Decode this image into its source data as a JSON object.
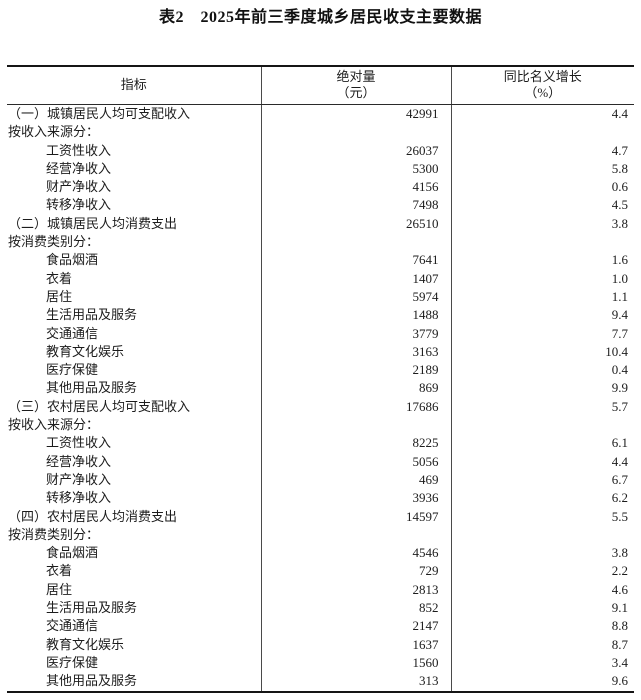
{
  "title": "表2　2025年前三季度城乡居民收支主要数据",
  "table": {
    "columns": [
      {
        "label": "指标",
        "unit": ""
      },
      {
        "label": "绝对量",
        "unit": "（元）"
      },
      {
        "label": "同比名义增长",
        "unit": "（%）"
      }
    ],
    "rows": [
      {
        "type": "section",
        "label": "（一）城镇居民人均可支配收入",
        "abs": "42991",
        "growth": "4.4"
      },
      {
        "type": "group",
        "label": "按收入来源分：",
        "abs": "",
        "growth": ""
      },
      {
        "type": "item",
        "label": "工资性收入",
        "abs": "26037",
        "growth": "4.7"
      },
      {
        "type": "item",
        "label": "经营净收入",
        "abs": "5300",
        "growth": "5.8"
      },
      {
        "type": "item",
        "label": "财产净收入",
        "abs": "4156",
        "growth": "0.6"
      },
      {
        "type": "item",
        "label": "转移净收入",
        "abs": "7498",
        "growth": "4.5"
      },
      {
        "type": "section",
        "label": "（二）城镇居民人均消费支出",
        "abs": "26510",
        "growth": "3.8"
      },
      {
        "type": "group",
        "label": "按消费类别分：",
        "abs": "",
        "growth": ""
      },
      {
        "type": "item",
        "label": "食品烟酒",
        "abs": "7641",
        "growth": "1.6"
      },
      {
        "type": "item",
        "label": "衣着",
        "abs": "1407",
        "growth": "1.0"
      },
      {
        "type": "item",
        "label": "居住",
        "abs": "5974",
        "growth": "1.1"
      },
      {
        "type": "item",
        "label": "生活用品及服务",
        "abs": "1488",
        "growth": "9.4"
      },
      {
        "type": "item",
        "label": "交通通信",
        "abs": "3779",
        "growth": "7.7"
      },
      {
        "type": "item",
        "label": "教育文化娱乐",
        "abs": "3163",
        "growth": "10.4"
      },
      {
        "type": "item",
        "label": "医疗保健",
        "abs": "2189",
        "growth": "0.4"
      },
      {
        "type": "item",
        "label": "其他用品及服务",
        "abs": "869",
        "growth": "9.9"
      },
      {
        "type": "section",
        "label": "（三）农村居民人均可支配收入",
        "abs": "17686",
        "growth": "5.7"
      },
      {
        "type": "group",
        "label": "按收入来源分：",
        "abs": "",
        "growth": ""
      },
      {
        "type": "item",
        "label": "工资性收入",
        "abs": "8225",
        "growth": "6.1"
      },
      {
        "type": "item",
        "label": "经营净收入",
        "abs": "5056",
        "growth": "4.4"
      },
      {
        "type": "item",
        "label": "财产净收入",
        "abs": "469",
        "growth": "6.7"
      },
      {
        "type": "item",
        "label": "转移净收入",
        "abs": "3936",
        "growth": "6.2"
      },
      {
        "type": "section",
        "label": "（四）农村居民人均消费支出",
        "abs": "14597",
        "growth": "5.5"
      },
      {
        "type": "group",
        "label": "按消费类别分：",
        "abs": "",
        "growth": ""
      },
      {
        "type": "item",
        "label": "食品烟酒",
        "abs": "4546",
        "growth": "3.8"
      },
      {
        "type": "item",
        "label": "衣着",
        "abs": "729",
        "growth": "2.2"
      },
      {
        "type": "item",
        "label": "居住",
        "abs": "2813",
        "growth": "4.6"
      },
      {
        "type": "item",
        "label": "生活用品及服务",
        "abs": "852",
        "growth": "9.1"
      },
      {
        "type": "item",
        "label": "交通通信",
        "abs": "2147",
        "growth": "8.8"
      },
      {
        "type": "item",
        "label": "教育文化娱乐",
        "abs": "1637",
        "growth": "8.7"
      },
      {
        "type": "item",
        "label": "医疗保健",
        "abs": "1560",
        "growth": "3.4"
      },
      {
        "type": "item",
        "label": "其他用品及服务",
        "abs": "313",
        "growth": "9.6"
      }
    ]
  }
}
